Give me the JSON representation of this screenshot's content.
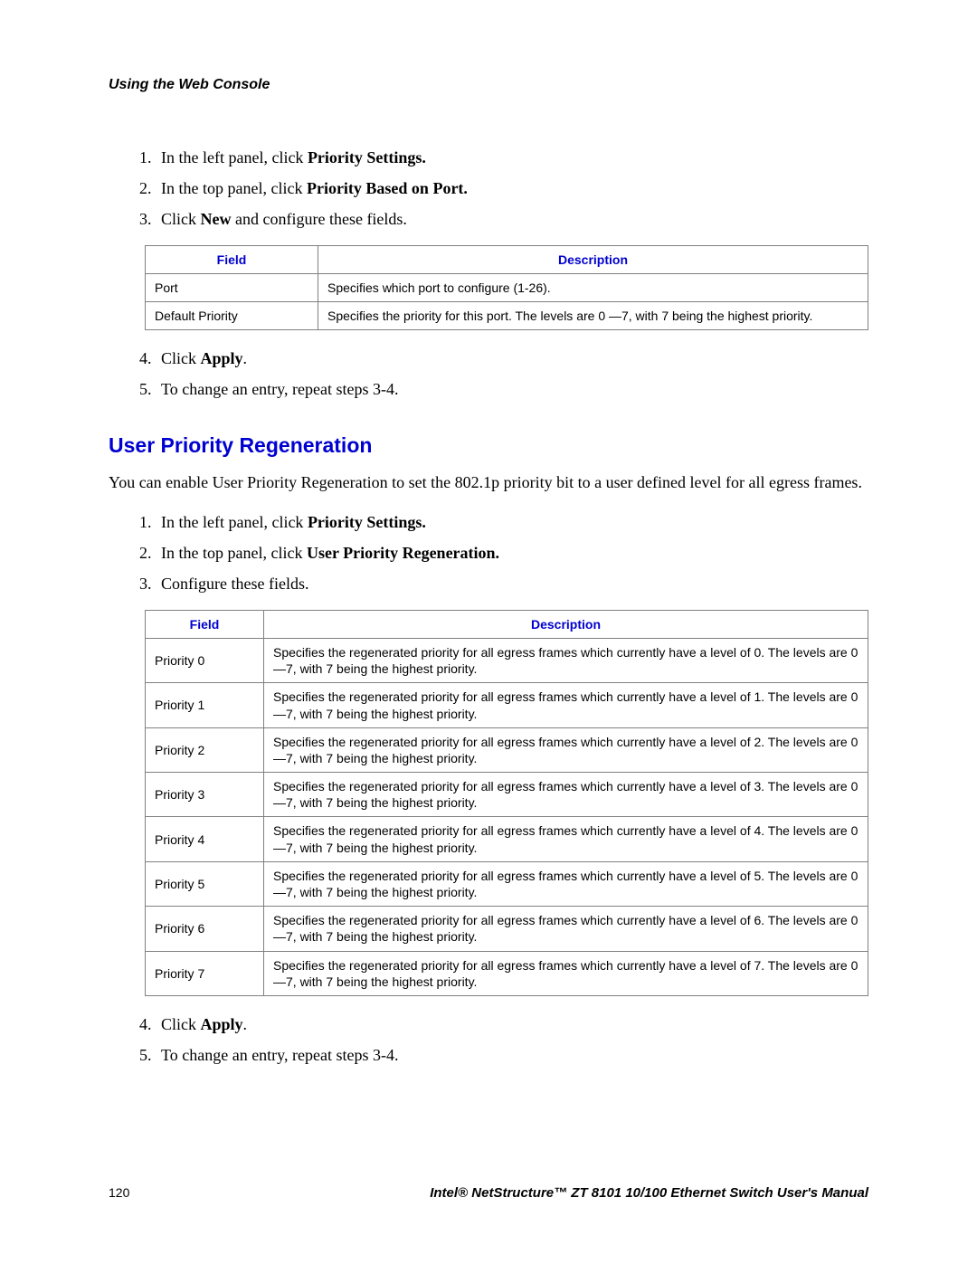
{
  "running_head": "Using the Web Console",
  "steps_a": {
    "s1_pre": "In the left panel, click ",
    "s1_bold": "Priority Settings.",
    "s2_pre": "In the top panel, click ",
    "s2_bold": "Priority Based on Port.",
    "s3_pre": "Click ",
    "s3_bold": "New",
    "s3_post": " and configure these fields."
  },
  "table1": {
    "head_field": "Field",
    "head_desc": "Description",
    "rows": [
      {
        "field": "Port",
        "desc": "Specifies which port to configure (1-26)."
      },
      {
        "field": "Default Priority",
        "desc": "Specifies the priority for this port. The levels are 0 —7, with 7 being the highest priority."
      }
    ]
  },
  "steps_b": {
    "s4_pre": "Click ",
    "s4_bold": "Apply",
    "s4_post": ".",
    "s5": "To change an entry, repeat steps 3-4."
  },
  "section_heading": "User Priority Regeneration",
  "section_intro": "You can enable User Priority Regeneration to set the 802.1p priority bit to a user defined level for all egress frames.",
  "steps_c": {
    "s1_pre": "In the left panel, click ",
    "s1_bold": "Priority Settings.",
    "s2_pre": "In the top panel, click ",
    "s2_bold": "User Priority Regeneration.",
    "s3": "Configure these fields."
  },
  "table2": {
    "head_field": "Field",
    "head_desc": "Description",
    "rows": [
      {
        "field": "Priority 0",
        "desc": "Specifies the regenerated priority for all egress frames which currently have a level of 0. The levels are 0 —7, with 7 being the highest priority."
      },
      {
        "field": "Priority 1",
        "desc": "Specifies the regenerated priority for all egress frames which currently have a level of 1. The levels are 0 —7, with 7 being the highest priority."
      },
      {
        "field": "Priority 2",
        "desc": "Specifies the regenerated priority for all egress frames which currently have a level of 2. The levels are 0 —7, with 7 being the highest priority."
      },
      {
        "field": "Priority 3",
        "desc": "Specifies the regenerated priority for all egress frames which currently have a level of 3. The levels are 0 —7, with 7 being the highest priority."
      },
      {
        "field": "Priority 4",
        "desc": "Specifies the regenerated priority for all egress frames which currently have a level of 4. The levels are 0 —7, with 7 being the highest priority."
      },
      {
        "field": "Priority 5",
        "desc": "Specifies the regenerated priority for all egress frames which currently have a level of 5. The levels are 0 —7, with 7 being the highest priority."
      },
      {
        "field": "Priority 6",
        "desc": "Specifies the regenerated priority for all egress frames which currently have a level of 6. The levels are 0 —7, with 7 being the highest priority."
      },
      {
        "field": "Priority 7",
        "desc": "Specifies the regenerated priority for all egress frames which currently have a level of 7. The levels are 0 —7, with 7 being the highest priority."
      }
    ]
  },
  "steps_d": {
    "s4_pre": "Click ",
    "s4_bold": "Apply",
    "s4_post": ".",
    "s5": "To change an entry, repeat steps 3-4."
  },
  "footer": {
    "page_number": "120",
    "title": "Intel® NetStructure™  ZT 8101 10/100 Ethernet Switch User's Manual"
  },
  "colors": {
    "heading_blue": "#0000d0",
    "border_gray": "#808080",
    "text": "#000000",
    "background": "#ffffff"
  }
}
